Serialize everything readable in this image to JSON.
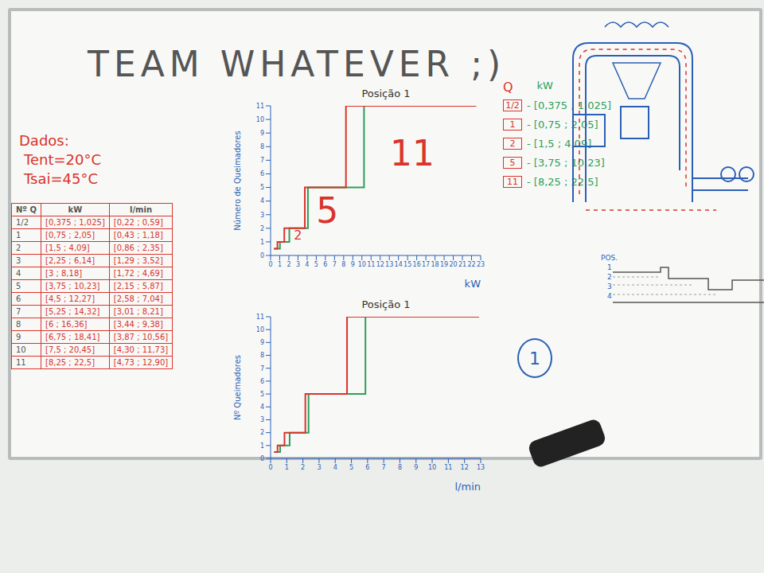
{
  "title": "TEAM WHATEVER ;)",
  "dados": {
    "heading": "Dados:",
    "lines": [
      "Tent=20°C",
      "Tsai=45°C"
    ]
  },
  "table": {
    "header": [
      "Nº Q",
      "kW",
      "l/min"
    ],
    "rows": [
      [
        "1/2",
        "[0,375 ; 1,025]",
        "[0,22 ; 0,59]"
      ],
      [
        "1",
        "[0,75 ; 2,05]",
        "[0,43 ; 1,18]"
      ],
      [
        "2",
        "[1,5 ; 4,09]",
        "[0,86 ; 2,35]"
      ],
      [
        "3",
        "[2,25 ; 6,14]",
        "[1,29 ; 3,52]"
      ],
      [
        "4",
        "[3 ; 8,18]",
        "[1,72 ; 4,69]"
      ],
      [
        "5",
        "[3,75 ; 10,23]",
        "[2,15 ; 5,87]"
      ],
      [
        "6",
        "[4,5 ; 12,27]",
        "[2,58 ; 7,04]"
      ],
      [
        "7",
        "[5,25 ; 14,32]",
        "[3,01 ; 8,21]"
      ],
      [
        "8",
        "[6 ; 16,36]",
        "[3,44 ; 9,38]"
      ],
      [
        "9",
        "[6,75 ; 18,41]",
        "[3,87 ; 10,56]"
      ],
      [
        "10",
        "[7,5 ; 20,45]",
        "[4,30 ; 11,73]"
      ],
      [
        "11",
        "[8,25 ; 22,5]",
        "[4,73 ; 12,90]"
      ]
    ]
  },
  "chart_data": [
    {
      "type": "line",
      "title": "Posição 1",
      "x_label": "kW",
      "y_label": "Número de Queimadores",
      "xlim": [
        0,
        23
      ],
      "xticks": [
        0,
        1,
        2,
        3,
        4,
        5,
        6,
        7,
        8,
        9,
        10,
        11,
        12,
        13,
        14,
        15,
        16,
        17,
        18,
        19,
        20,
        21,
        22,
        23
      ],
      "ylim": [
        0,
        11
      ],
      "yticks": [
        0,
        1,
        2,
        3,
        4,
        5,
        6,
        7,
        8,
        9,
        10,
        11
      ],
      "grid": false,
      "series": [
        {
          "color": "#2e9e5b",
          "marker": "none",
          "x": [
            0.375,
            1.025,
            1.025,
            2.05,
            2.05,
            4.09,
            4.09,
            10.23,
            10.23,
            22.5
          ],
          "values": [
            0.5,
            0.5,
            1,
            1,
            2,
            2,
            5,
            5,
            11,
            11
          ]
        },
        {
          "color": "#d9342b",
          "marker": "none",
          "x": [
            22.5,
            8.25,
            8.25,
            3.75,
            3.75,
            1.5,
            1.5,
            0.75,
            0.75,
            0.375
          ],
          "values": [
            11,
            11,
            5,
            5,
            2,
            2,
            1,
            1,
            0.5,
            0.5
          ]
        }
      ],
      "annotations": [
        {
          "text": "11",
          "x": 15.5,
          "y": 7.5,
          "color": "#d9342b"
        },
        {
          "text": "5",
          "x": 6.2,
          "y": 3.3,
          "color": "#d9342b"
        },
        {
          "text": "2",
          "x": 3,
          "y": 1.5,
          "color": "#d9342b"
        }
      ]
    },
    {
      "type": "line",
      "title": "Posição 1",
      "x_label": "l/min",
      "y_label": "Nº Queimadores",
      "xlim": [
        0,
        13
      ],
      "xticks": [
        0,
        1,
        2,
        3,
        4,
        5,
        6,
        7,
        8,
        9,
        10,
        11,
        12,
        13
      ],
      "ylim": [
        0,
        11
      ],
      "yticks": [
        0,
        1,
        2,
        3,
        4,
        5,
        6,
        7,
        8,
        9,
        10,
        11
      ],
      "grid": false,
      "series": [
        {
          "color": "#2e9e5b",
          "marker": "none",
          "x": [
            0.22,
            0.59,
            0.59,
            1.18,
            1.18,
            2.35,
            2.35,
            5.87,
            5.87,
            12.9
          ],
          "values": [
            0.5,
            0.5,
            1,
            1,
            2,
            2,
            5,
            5,
            11,
            11
          ]
        },
        {
          "color": "#d9342b",
          "marker": "none",
          "x": [
            12.9,
            4.73,
            4.73,
            2.15,
            2.15,
            0.86,
            0.86,
            0.43,
            0.43,
            0.22
          ],
          "values": [
            11,
            11,
            5,
            5,
            2,
            2,
            1,
            1,
            0.5,
            0.5
          ]
        }
      ],
      "annotations": []
    }
  ],
  "q_list": {
    "header": [
      "Q",
      "kW"
    ],
    "rows": [
      [
        "1/2",
        "- [0,375 ; 1,025]"
      ],
      [
        "1",
        "- [0,75 ; 2,05]"
      ],
      [
        "2",
        "- [1,5 ; 4,09]"
      ],
      [
        "5",
        "- [3,75 ; 10,23]"
      ],
      [
        "11",
        "- [8,25 ; 22,5]"
      ]
    ]
  },
  "circle_label": "1",
  "pos_diagram": {
    "heading": "POS.",
    "rows": [
      "1",
      "2",
      "3",
      "4"
    ]
  }
}
